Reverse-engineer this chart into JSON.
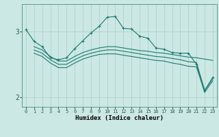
{
  "xlabel": "Humidex (Indice chaleur)",
  "bg_color": "#cce8e4",
  "grid_color": "#b0cfcc",
  "line_color": "#1a7a70",
  "ylim": [
    1.85,
    3.42
  ],
  "xlim": [
    -0.5,
    23.5
  ],
  "yticks": [
    2.0,
    3.0
  ],
  "x_ticks": [
    0,
    1,
    2,
    3,
    4,
    5,
    6,
    7,
    8,
    9,
    10,
    11,
    12,
    13,
    14,
    15,
    16,
    17,
    18,
    19,
    20,
    21,
    22,
    23
  ],
  "series": [
    {
      "x": [
        0,
        1,
        2,
        3,
        4,
        5,
        6,
        7,
        8,
        9,
        10,
        11,
        12,
        13,
        14,
        15,
        16,
        17,
        18,
        19,
        20,
        21,
        22,
        23
      ],
      "y": [
        3.03,
        2.85,
        2.77,
        2.6,
        2.57,
        2.6,
        2.74,
        2.86,
        2.98,
        3.08,
        3.22,
        3.23,
        3.05,
        3.04,
        2.93,
        2.9,
        2.75,
        2.73,
        2.68,
        2.67,
        2.67,
        2.5,
        2.1,
        2.3
      ],
      "marker": "+"
    },
    {
      "x": [
        1,
        2,
        3,
        4,
        5,
        6,
        7,
        8,
        9,
        10,
        11,
        12,
        13,
        14,
        15,
        16,
        17,
        18,
        19,
        20,
        21,
        22,
        23
      ],
      "y": [
        2.77,
        2.72,
        2.62,
        2.55,
        2.55,
        2.62,
        2.68,
        2.72,
        2.75,
        2.77,
        2.77,
        2.75,
        2.73,
        2.71,
        2.7,
        2.68,
        2.67,
        2.65,
        2.63,
        2.61,
        2.6,
        2.58,
        2.56
      ],
      "marker": null
    },
    {
      "x": [
        1,
        2,
        3,
        4,
        5,
        6,
        7,
        8,
        9,
        10,
        11,
        12,
        13,
        14,
        15,
        16,
        17,
        18,
        19,
        20,
        21,
        22,
        23
      ],
      "y": [
        2.72,
        2.67,
        2.57,
        2.5,
        2.5,
        2.57,
        2.63,
        2.67,
        2.7,
        2.72,
        2.72,
        2.7,
        2.68,
        2.66,
        2.64,
        2.62,
        2.61,
        2.59,
        2.57,
        2.54,
        2.53,
        2.1,
        2.28
      ],
      "marker": null
    },
    {
      "x": [
        1,
        2,
        3,
        4,
        5,
        6,
        7,
        8,
        9,
        10,
        11,
        12,
        13,
        14,
        15,
        16,
        17,
        18,
        19,
        20,
        21,
        22,
        23
      ],
      "y": [
        2.67,
        2.62,
        2.52,
        2.45,
        2.45,
        2.52,
        2.58,
        2.62,
        2.65,
        2.66,
        2.66,
        2.64,
        2.62,
        2.6,
        2.58,
        2.56,
        2.55,
        2.52,
        2.5,
        2.47,
        2.46,
        2.07,
        2.25
      ],
      "marker": null
    }
  ]
}
